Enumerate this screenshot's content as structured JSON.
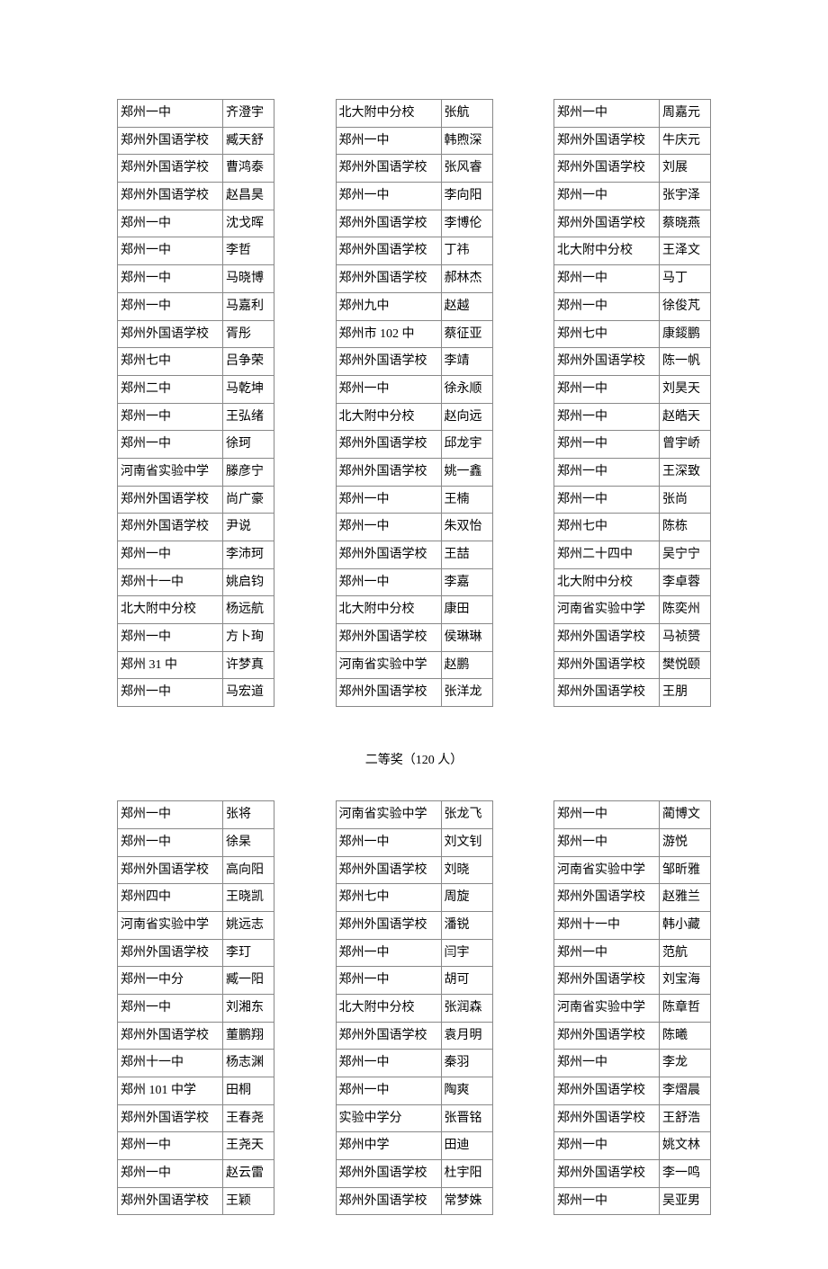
{
  "section_title": "二等奖（120 人）",
  "block1": {
    "left": [
      [
        "郑州一中",
        "齐澄宇"
      ],
      [
        "郑州外国语学校",
        "臧天舒"
      ],
      [
        "郑州外国语学校",
        "曹鸿泰"
      ],
      [
        "郑州外国语学校",
        "赵昌昊"
      ],
      [
        "郑州一中",
        "沈戈晖"
      ],
      [
        "郑州一中",
        "李哲"
      ],
      [
        "郑州一中",
        "马晓博"
      ],
      [
        "郑州一中",
        "马嘉利"
      ],
      [
        "郑州外国语学校",
        "胥彤"
      ],
      [
        "郑州七中",
        "吕争荣"
      ],
      [
        "郑州二中",
        "马乾坤"
      ],
      [
        "郑州一中",
        "王弘绪"
      ],
      [
        "郑州一中",
        "徐珂"
      ],
      [
        "河南省实验中学",
        "滕彦宁"
      ],
      [
        "郑州外国语学校",
        "尚广豪"
      ],
      [
        "郑州外国语学校",
        "尹说"
      ],
      [
        "郑州一中",
        "李沛珂"
      ],
      [
        "郑州十一中",
        "姚启钧"
      ],
      [
        "北大附中分校",
        "杨远航"
      ],
      [
        "郑州一中",
        "方卜珣"
      ],
      [
        "郑州 31 中",
        "许梦真"
      ],
      [
        "郑州一中",
        "马宏道"
      ]
    ],
    "mid": [
      [
        "北大附中分校",
        "张航"
      ],
      [
        "郑州一中",
        "韩煦深"
      ],
      [
        "郑州外国语学校",
        "张风睿"
      ],
      [
        "郑州一中",
        "李向阳"
      ],
      [
        "郑州外国语学校",
        "李博伦"
      ],
      [
        "郑州外国语学校",
        "丁祎"
      ],
      [
        "郑州外国语学校",
        "郝林杰"
      ],
      [
        "郑州九中",
        "赵越"
      ],
      [
        "郑州市 102 中",
        "蔡征亚"
      ],
      [
        "郑州外国语学校",
        "李靖"
      ],
      [
        "郑州一中",
        "徐永顺"
      ],
      [
        "北大附中分校",
        "赵向远"
      ],
      [
        "郑州外国语学校",
        "邱龙宇"
      ],
      [
        "郑州外国语学校",
        "姚一鑫"
      ],
      [
        "郑州一中",
        "王楠"
      ],
      [
        "郑州一中",
        "朱双怡"
      ],
      [
        "郑州外国语学校",
        "王喆"
      ],
      [
        "郑州一中",
        "李嘉"
      ],
      [
        "北大附中分校",
        "康田"
      ],
      [
        "郑州外国语学校",
        "侯琳琳"
      ],
      [
        "河南省实验中学",
        "赵鹏"
      ],
      [
        "郑州外国语学校",
        "张洋龙"
      ]
    ],
    "right": [
      [
        "郑州一中",
        "周嘉元"
      ],
      [
        "郑州外国语学校",
        "牛庆元"
      ],
      [
        "郑州外国语学校",
        "刘展"
      ],
      [
        "郑州一中",
        "张宇泽"
      ],
      [
        "郑州外国语学校",
        "蔡晓燕"
      ],
      [
        "北大附中分校",
        "王泽文"
      ],
      [
        "郑州一中",
        "马丁"
      ],
      [
        "郑州一中",
        "徐俊芃"
      ],
      [
        "郑州七中",
        "康錽鹏"
      ],
      [
        "郑州外国语学校",
        "陈一帆"
      ],
      [
        "郑州一中",
        "刘昊天"
      ],
      [
        "郑州一中",
        "赵皓天"
      ],
      [
        "郑州一中",
        "曾宇峤"
      ],
      [
        "郑州一中",
        "王深致"
      ],
      [
        "郑州一中",
        "张尚"
      ],
      [
        "郑州七中",
        "陈栋"
      ],
      [
        "郑州二十四中",
        "吴宁宁"
      ],
      [
        "北大附中分校",
        "李卓蓉"
      ],
      [
        "河南省实验中学",
        "陈奕州"
      ],
      [
        "郑州外国语学校",
        "马祯赟"
      ],
      [
        "郑州外国语学校",
        "樊悦颐"
      ],
      [
        "郑州外国语学校",
        "王朋"
      ]
    ]
  },
  "block2": {
    "left": [
      [
        "郑州一中",
        "张将"
      ],
      [
        "郑州一中",
        "徐杲"
      ],
      [
        "郑州外国语学校",
        "高向阳"
      ],
      [
        "郑州四中",
        "王晓凯"
      ],
      [
        "河南省实验中学",
        "姚远志"
      ],
      [
        "郑州外国语学校",
        "李玎"
      ],
      [
        "郑州一中分",
        "臧一阳"
      ],
      [
        "郑州一中",
        "刘湘东"
      ],
      [
        "郑州外国语学校",
        "董鹏翔"
      ],
      [
        "郑州十一中",
        "杨志渊"
      ],
      [
        "郑州 101 中学",
        "田桐"
      ],
      [
        "郑州外国语学校",
        "王春尧"
      ],
      [
        "郑州一中",
        "王尧天"
      ],
      [
        "郑州一中",
        "赵云雷"
      ],
      [
        "郑州外国语学校",
        "王颖"
      ]
    ],
    "mid": [
      [
        "河南省实验中学",
        "张龙飞"
      ],
      [
        "郑州一中",
        "刘文钊"
      ],
      [
        "郑州外国语学校",
        "刘晓"
      ],
      [
        "郑州七中",
        "周旋"
      ],
      [
        "郑州外国语学校",
        "潘锐"
      ],
      [
        "郑州一中",
        "闫宇"
      ],
      [
        "郑州一中",
        "胡可"
      ],
      [
        "北大附中分校",
        "张润森"
      ],
      [
        "郑州外国语学校",
        "袁月明"
      ],
      [
        "郑州一中",
        "秦羽"
      ],
      [
        "郑州一中",
        "陶爽"
      ],
      [
        "实验中学分",
        "张晋铭"
      ],
      [
        "郑州中学",
        "田迪"
      ],
      [
        "郑州外国语学校",
        "杜宇阳"
      ],
      [
        "郑州外国语学校",
        "常梦姝"
      ]
    ],
    "right": [
      [
        "郑州一中",
        "蔺博文"
      ],
      [
        "郑州一中",
        "游悦"
      ],
      [
        "河南省实验中学",
        "邹昕雅"
      ],
      [
        "郑州外国语学校",
        "赵雅兰"
      ],
      [
        "郑州十一中",
        "韩小藏"
      ],
      [
        "郑州一中",
        "范航"
      ],
      [
        "郑州外国语学校",
        "刘宝海"
      ],
      [
        "河南省实验中学",
        "陈章哲"
      ],
      [
        "郑州外国语学校",
        "陈曦"
      ],
      [
        "郑州一中",
        "李龙"
      ],
      [
        "郑州外国语学校",
        "李熠晨"
      ],
      [
        "郑州外国语学校",
        "王舒浩"
      ],
      [
        "郑州一中",
        "姚文林"
      ],
      [
        "郑州外国语学校",
        "李一鸣"
      ],
      [
        "郑州一中",
        "吴亚男"
      ]
    ]
  }
}
